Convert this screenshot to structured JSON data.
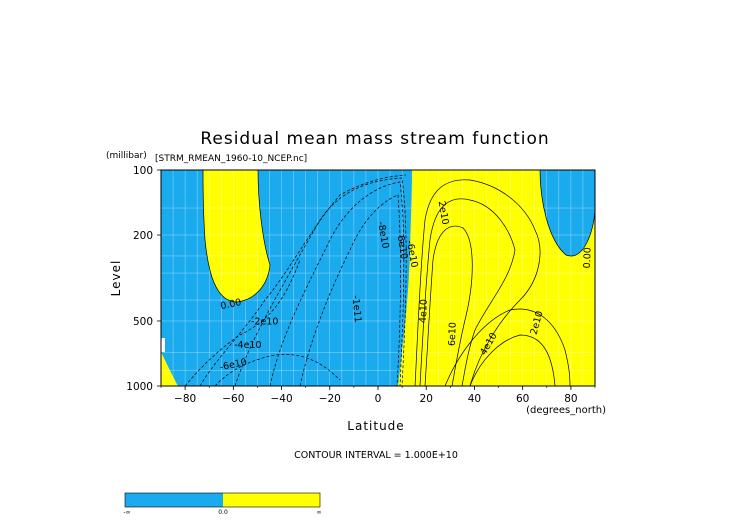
{
  "chart_data": {
    "type": "heatmap",
    "title": "Residual mean mass stream function",
    "subtitle": "[STRM_RMEAN_1960-10_NCEP.nc]",
    "xlabel": "Latitude",
    "ylabel": "Level",
    "xunits": "(degrees_north)",
    "yunits": "(millibar)",
    "xlim": [
      -90,
      90
    ],
    "ylim": [
      1000,
      100
    ],
    "yscale": "log",
    "xticks": [
      -80,
      -60,
      -40,
      -20,
      0,
      20,
      40,
      60,
      80
    ],
    "yticks": [
      100,
      200,
      500,
      1000
    ],
    "grid": true,
    "contour_interval_text": "CONTOUR INTERVAL = 1.000E+10",
    "contour_labels": [
      {
        "text": "0.00",
        "lat": -61,
        "level": 420,
        "angle": -12
      },
      {
        "text": "-2e10",
        "lat": -47,
        "level": 505,
        "angle": 0
      },
      {
        "text": "-4e10",
        "lat": -54,
        "level": 650,
        "angle": 0
      },
      {
        "text": "-6e10",
        "lat": -60,
        "level": 800,
        "angle": -12
      },
      {
        "text": "-1e11",
        "lat": -9,
        "level": 440,
        "angle": 85
      },
      {
        "text": "-8e10",
        "lat": 2,
        "level": 200,
        "angle": 80
      },
      {
        "text": "6e10",
        "lat": 10,
        "level": 228,
        "angle": 80
      },
      {
        "text": "-6e10",
        "lat": 14,
        "level": 245,
        "angle": 80
      },
      {
        "text": "2e10",
        "lat": 27,
        "level": 158,
        "angle": 80
      },
      {
        "text": "4e10",
        "lat": 19,
        "level": 450,
        "angle": -88
      },
      {
        "text": "6e10",
        "lat": 31,
        "level": 575,
        "angle": -88
      },
      {
        "text": "4e10",
        "lat": 46,
        "level": 640,
        "angle": -60
      },
      {
        "text": "2e10",
        "lat": 66,
        "level": 510,
        "angle": -75
      },
      {
        "text": "0.00",
        "lat": 87,
        "level": 255,
        "angle": -88
      }
    ],
    "colorbar": {
      "labels": [
        "-∞",
        "0.0",
        "∞"
      ],
      "colors": [
        "#1aaaee",
        "#ffff00"
      ]
    },
    "colors": {
      "negative": "#1aaaee",
      "positive": "#ffff00"
    }
  }
}
